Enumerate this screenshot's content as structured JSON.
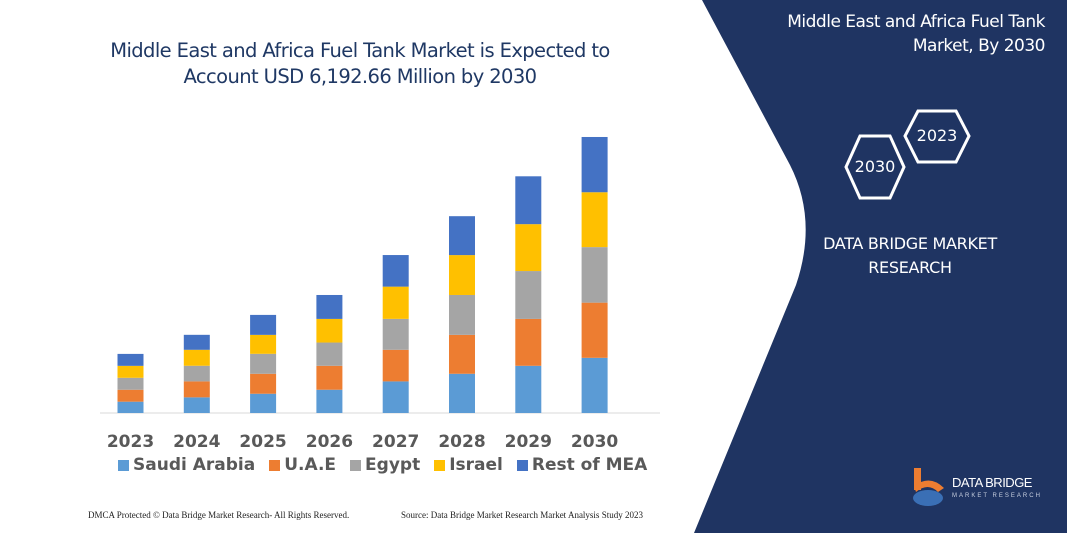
{
  "chart_data": {
    "type": "bar",
    "stacked": true,
    "title": "Middle East and Africa Fuel Tank Market is Expected to Account USD 6,192.66 Million by 2030",
    "xlabel": "",
    "ylabel": "",
    "categories": [
      "2023",
      "2024",
      "2025",
      "2026",
      "2027",
      "2028",
      "2029",
      "2030"
    ],
    "series": [
      {
        "name": "Saudi Arabia",
        "color": "#5b9bd5",
        "values": [
          254,
          351,
          432,
          522,
          709,
          880,
          1059,
          1238
        ]
      },
      {
        "name": "U.A.E",
        "color": "#ed7d31",
        "values": [
          268,
          358,
          448,
          537,
          709,
          873,
          1052,
          1238
        ]
      },
      {
        "name": "Egypt",
        "color": "#a5a5a5",
        "values": [
          268,
          351,
          448,
          522,
          694,
          895,
          1074,
          1246
        ]
      },
      {
        "name": "Israel",
        "color": "#ffc000",
        "values": [
          268,
          358,
          425,
          530,
          723,
          895,
          1052,
          1231
        ]
      },
      {
        "name": "Rest of MEA",
        "color": "#4472c4",
        "values": [
          268,
          336,
          448,
          537,
          709,
          873,
          1074,
          1240
        ]
      }
    ],
    "ylim": [
      0,
      6192.66
    ],
    "grid": false,
    "legend_position": "bottom",
    "y_axis_visible": false
  },
  "side_panel": {
    "title": "Middle East and Africa Fuel Tank Market, By 2030",
    "hex_2023": "2023",
    "hex_2030": "2030",
    "brand_line1": "DATA BRIDGE MARKET",
    "brand_line2": "RESEARCH",
    "logo_text": "DATA BRIDGE",
    "logo_sub": "MARKET RESEARCH",
    "panel_color": "#1f3462"
  },
  "footer": {
    "left": "DMCA Protected © Data Bridge Market Research-  All Rights Reserved.",
    "right": "Source: Data Bridge Market Research  Market Analysis Study 2023"
  }
}
